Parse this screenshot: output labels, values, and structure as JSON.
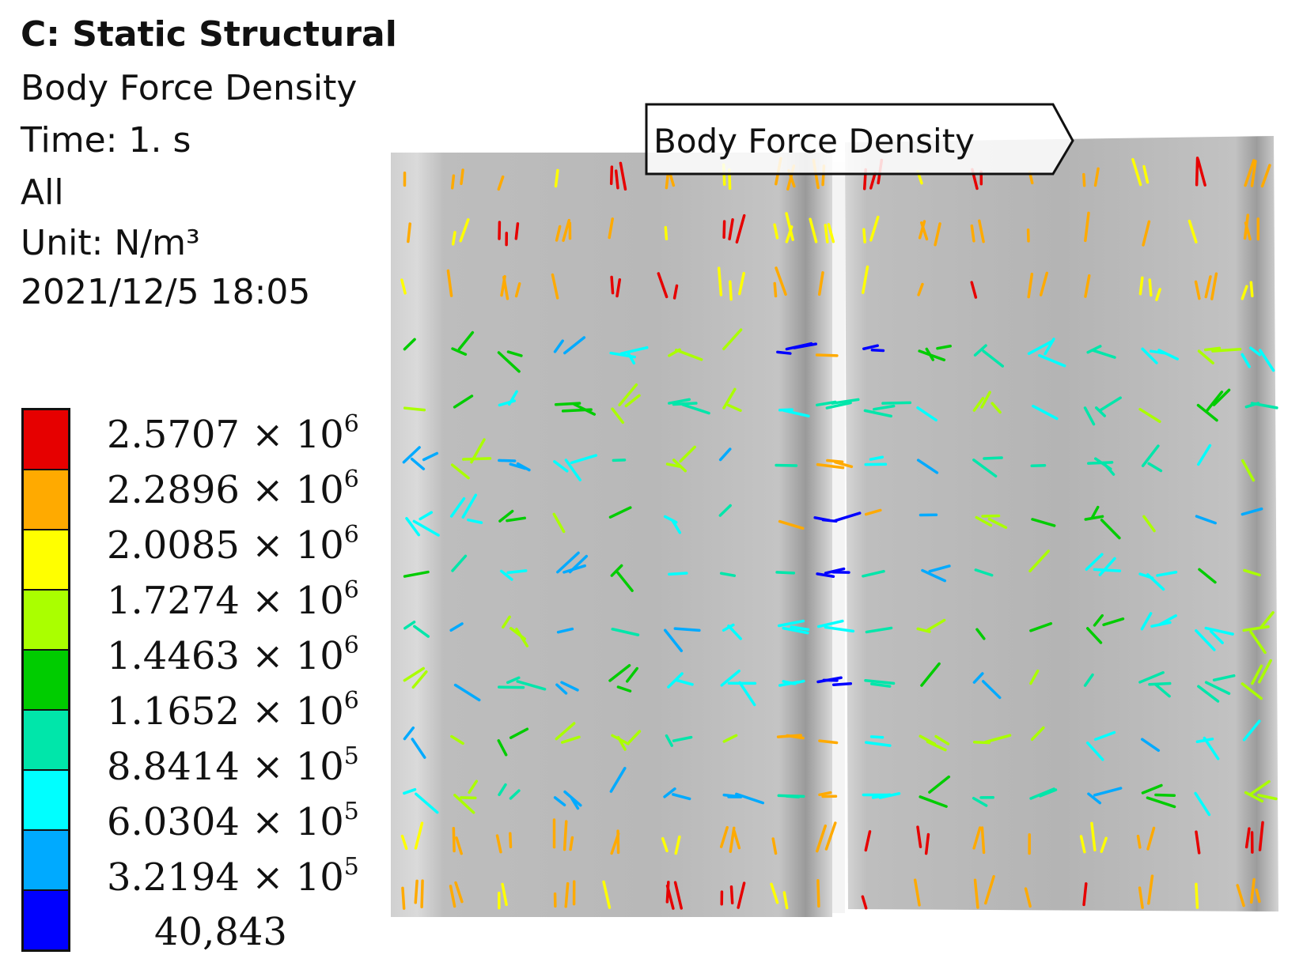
{
  "header": {
    "analysis_title": "C: Static Structural",
    "result_name": "Body Force Density",
    "time": "Time: 1. s",
    "scope": "All",
    "unit": "Unit: N/m³",
    "timestamp": "2021/12/5 18:05"
  },
  "legend": {
    "labels": [
      {
        "mantissa": "2.5707",
        "exponent": "6"
      },
      {
        "mantissa": "2.2896",
        "exponent": "6"
      },
      {
        "mantissa": "2.0085",
        "exponent": "6"
      },
      {
        "mantissa": "1.7274",
        "exponent": "6"
      },
      {
        "mantissa": "1.4463",
        "exponent": "6"
      },
      {
        "mantissa": "1.1652",
        "exponent": "6"
      },
      {
        "mantissa": "8.8414",
        "exponent": "5"
      },
      {
        "mantissa": "6.0304",
        "exponent": "5"
      },
      {
        "mantissa": "3.2194",
        "exponent": "5"
      }
    ],
    "min_label": "40,843",
    "band_colors": [
      "#e60000",
      "#ffaa00",
      "#ffff00",
      "#aaff00",
      "#00cc00",
      "#00e6aa",
      "#00ffff",
      "#00aaff",
      "#0000ff"
    ]
  },
  "probe": {
    "label": "Body Force Density"
  }
}
